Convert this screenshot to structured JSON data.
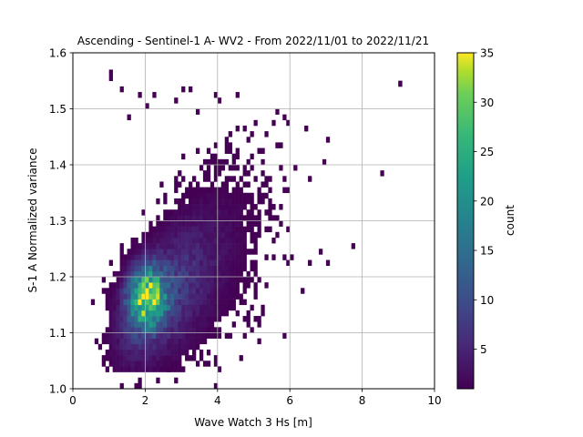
{
  "chart_data": {
    "type": "heatmap",
    "title": "Ascending - Sentinel-1 A- WV2 - From 2022/11/01 to 2022/11/21",
    "xlabel": "Wave Watch 3 Hs [m]",
    "ylabel": "S-1 A Normalized variance",
    "xlim": [
      0,
      10
    ],
    "ylim": [
      1.0,
      1.6
    ],
    "xticks": [
      0,
      2,
      4,
      6,
      8,
      10
    ],
    "xtick_labels": [
      "0",
      "2",
      "4",
      "6",
      "8",
      "10"
    ],
    "yticks": [
      1.0,
      1.1,
      1.2,
      1.3,
      1.4,
      1.5,
      1.6
    ],
    "ytick_labels": [
      "1.0",
      "1.1",
      "1.2",
      "1.3",
      "1.4",
      "1.5",
      "1.6"
    ],
    "grid": true,
    "colormap": "viridis",
    "colorbar": {
      "label": "count",
      "range": [
        1,
        35
      ],
      "ticks": [
        5,
        10,
        15,
        20,
        25,
        30,
        35
      ],
      "tick_labels": [
        "5",
        "10",
        "15",
        "20",
        "25",
        "30",
        "35"
      ]
    },
    "bins": {
      "x_width": 0.1,
      "y_width": 0.01
    },
    "density_model": {
      "main_cluster": {
        "x_center": 2.05,
        "y_center": 1.165,
        "peak_count": 35
      },
      "outliers": [
        {
          "x": 1.05,
          "y": 1.565
        },
        {
          "x": 1.05,
          "y": 1.555
        },
        {
          "x": 9.0,
          "y": 1.545
        },
        {
          "x": 9.1,
          "y": 1.545
        },
        {
          "x": 1.3,
          "y": 1.535
        },
        {
          "x": 1.9,
          "y": 1.525
        },
        {
          "x": 2.3,
          "y": 1.525
        },
        {
          "x": 3.0,
          "y": 1.535
        },
        {
          "x": 3.2,
          "y": 1.535
        },
        {
          "x": 3.9,
          "y": 1.525
        },
        {
          "x": 4.5,
          "y": 1.525
        },
        {
          "x": 2.0,
          "y": 1.505
        },
        {
          "x": 2.9,
          "y": 1.515
        },
        {
          "x": 4.1,
          "y": 1.515
        },
        {
          "x": 1.5,
          "y": 1.485
        },
        {
          "x": 3.4,
          "y": 1.495
        },
        {
          "x": 5.1,
          "y": 1.475
        },
        {
          "x": 5.6,
          "y": 1.475
        },
        {
          "x": 7.0,
          "y": 1.445
        },
        {
          "x": 6.9,
          "y": 1.405
        },
        {
          "x": 8.5,
          "y": 1.385
        },
        {
          "x": 7.7,
          "y": 1.255
        },
        {
          "x": 7.0,
          "y": 1.225
        },
        {
          "x": 6.5,
          "y": 1.225
        },
        {
          "x": 6.8,
          "y": 1.245
        },
        {
          "x": 1.3,
          "y": 1.005
        },
        {
          "x": 2.6,
          "y": 1.035
        },
        {
          "x": 3.3,
          "y": 1.055
        },
        {
          "x": 0.7,
          "y": 1.085
        },
        {
          "x": 0.8,
          "y": 1.095
        },
        {
          "x": 0.75,
          "y": 1.075
        },
        {
          "x": 0.8,
          "y": 1.045
        }
      ]
    }
  }
}
